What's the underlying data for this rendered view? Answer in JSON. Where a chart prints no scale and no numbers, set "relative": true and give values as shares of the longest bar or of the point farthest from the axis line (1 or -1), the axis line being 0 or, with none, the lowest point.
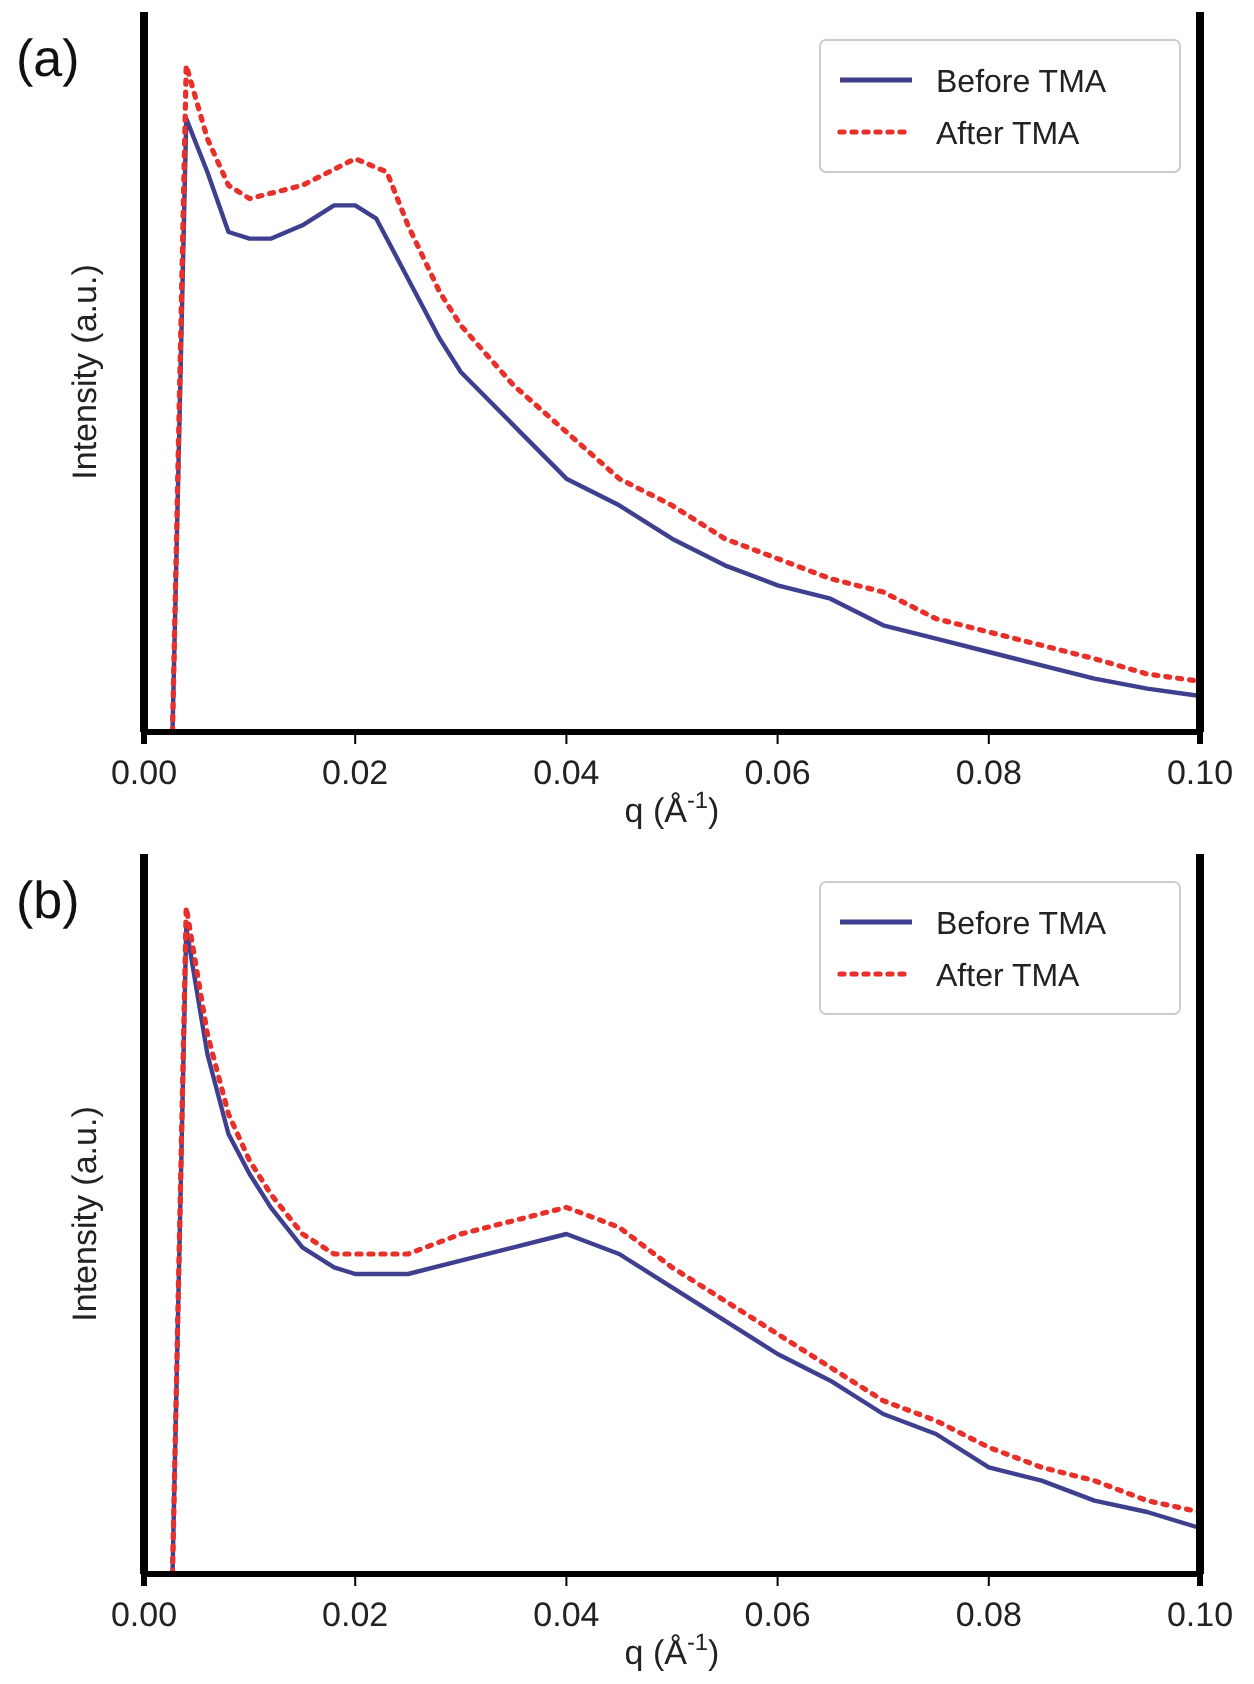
{
  "chart_data": [
    {
      "type": "line",
      "title": "(a)",
      "xlabel": "q (Å$^{-1}$)",
      "ylabel": "Intensity (a.u.)",
      "relative": true,
      "xlim": [
        0,
        0.1
      ],
      "xticks": [
        {
          "value": 0,
          "label": "0.00"
        },
        {
          "value": 0.02,
          "label": "0.02"
        },
        {
          "value": 0.04,
          "label": "0.04"
        },
        {
          "value": 0.06,
          "label": "0.06"
        },
        {
          "value": 0.08,
          "label": "0.08"
        },
        {
          "value": 0.1,
          "label": "0.10"
        }
      ],
      "legend": "top right",
      "series": [
        {
          "name": "Before TMA",
          "color": "#3f3f8f",
          "line_style": "solid",
          "x": [
            0.0027,
            0.004,
            0.006,
            0.008,
            0.01,
            0.012,
            0.015,
            0.018,
            0.02,
            0.022,
            0.025,
            0.028,
            0.03,
            0.035,
            0.04,
            0.045,
            0.05,
            0.055,
            0.06,
            0.065,
            0.07,
            0.075,
            0.08,
            0.085,
            0.09,
            0.095,
            0.1
          ],
          "values": [
            0,
            0.92,
            0.84,
            0.75,
            0.74,
            0.74,
            0.76,
            0.79,
            0.79,
            0.77,
            0.68,
            0.59,
            0.54,
            0.46,
            0.38,
            0.34,
            0.29,
            0.25,
            0.22,
            0.2,
            0.16,
            0.14,
            0.12,
            0.1,
            0.08,
            0.065,
            0.054
          ]
        },
        {
          "name": "After TMA",
          "color": "#e8302a",
          "line_style": "dotted",
          "x": [
            0.0027,
            0.004,
            0.006,
            0.008,
            0.01,
            0.015,
            0.02,
            0.023,
            0.025,
            0.028,
            0.03,
            0.035,
            0.04,
            0.045,
            0.05,
            0.055,
            0.06,
            0.065,
            0.07,
            0.075,
            0.08,
            0.085,
            0.09,
            0.095,
            0.1
          ],
          "values": [
            0,
            1.0,
            0.89,
            0.82,
            0.8,
            0.82,
            0.86,
            0.84,
            0.76,
            0.66,
            0.61,
            0.52,
            0.45,
            0.38,
            0.34,
            0.29,
            0.26,
            0.23,
            0.21,
            0.17,
            0.15,
            0.13,
            0.11,
            0.087,
            0.076
          ]
        }
      ]
    },
    {
      "type": "line",
      "title": "(b)",
      "xlabel": "q (Å$^{-1}$)",
      "ylabel": "Intensity (a.u.)",
      "relative": true,
      "xlim": [
        0,
        0.1
      ],
      "xticks": [
        {
          "value": 0,
          "label": "0.00"
        },
        {
          "value": 0.02,
          "label": "0.02"
        },
        {
          "value": 0.04,
          "label": "0.04"
        },
        {
          "value": 0.06,
          "label": "0.06"
        },
        {
          "value": 0.08,
          "label": "0.08"
        },
        {
          "value": 0.1,
          "label": "0.10"
        }
      ],
      "legend": "top right",
      "series": [
        {
          "name": "Before TMA",
          "color": "#3f3f8f",
          "line_style": "solid",
          "x": [
            0.0027,
            0.004,
            0.006,
            0.008,
            0.01,
            0.012,
            0.015,
            0.018,
            0.02,
            0.025,
            0.03,
            0.035,
            0.04,
            0.045,
            0.05,
            0.055,
            0.06,
            0.065,
            0.07,
            0.075,
            0.08,
            0.085,
            0.09,
            0.095,
            0.1
          ],
          "values": [
            0,
            0.97,
            0.78,
            0.66,
            0.6,
            0.55,
            0.49,
            0.46,
            0.45,
            0.45,
            0.47,
            0.49,
            0.51,
            0.48,
            0.43,
            0.38,
            0.33,
            0.29,
            0.24,
            0.21,
            0.16,
            0.14,
            0.11,
            0.093,
            0.069
          ]
        },
        {
          "name": "After TMA",
          "color": "#e8302a",
          "line_style": "dotted",
          "x": [
            0.0027,
            0.004,
            0.006,
            0.008,
            0.01,
            0.012,
            0.015,
            0.018,
            0.02,
            0.025,
            0.03,
            0.035,
            0.04,
            0.045,
            0.05,
            0.055,
            0.06,
            0.065,
            0.07,
            0.075,
            0.08,
            0.085,
            0.09,
            0.095,
            0.1
          ],
          "values": [
            0,
            1.0,
            0.81,
            0.69,
            0.62,
            0.57,
            0.51,
            0.48,
            0.48,
            0.48,
            0.51,
            0.53,
            0.55,
            0.52,
            0.46,
            0.41,
            0.36,
            0.31,
            0.26,
            0.23,
            0.19,
            0.16,
            0.14,
            0.11,
            0.093
          ]
        }
      ]
    }
  ]
}
